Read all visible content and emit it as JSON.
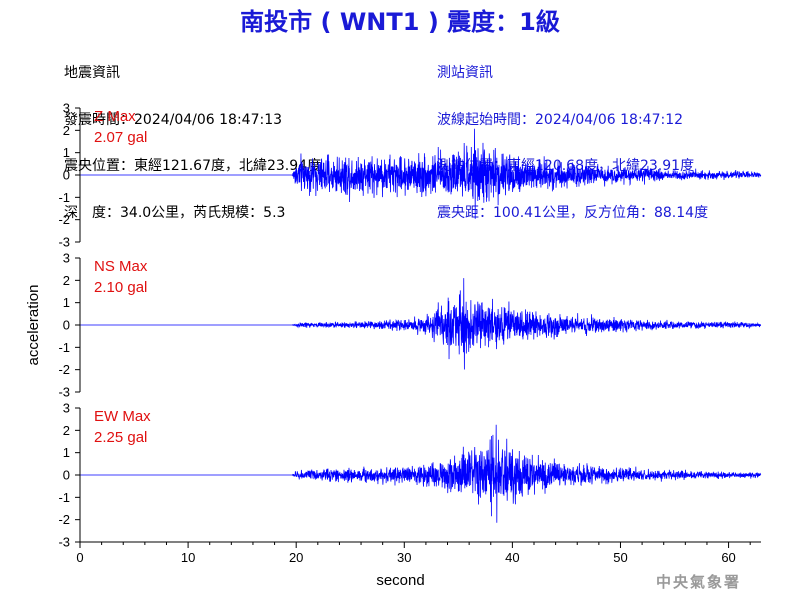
{
  "title": "南投市 ( WNT1 ) 震度：1級",
  "quake_info": {
    "heading": "地震資訊",
    "origin_time": "發震時間：2024/04/06 18:47:13",
    "epicenter": "震央位置：東經121.67度，北緯23.94度",
    "depth_magnitude": "深　度：34.0公里，芮氏規模：5.3"
  },
  "station_info": {
    "heading": "測站資訊",
    "wave_start_time": "波線起始時間：2024/04/06 18:47:12",
    "station_location": "測站位置：東經120.68度，北緯23.91度",
    "distance_azimuth": "震央距：100.41公里，反方位角：88.14度"
  },
  "watermark": "中央氣象署",
  "colors": {
    "trace": "#0000ff",
    "max_label": "#e01010",
    "title": "#1a1ad6"
  },
  "chart_data": {
    "type": "line",
    "xlabel": "second",
    "ylabel": "acceleration",
    "xlim": [
      0,
      63
    ],
    "x_ticks": [
      0,
      10,
      20,
      30,
      40,
      50,
      60
    ],
    "ylim": [
      -3,
      3
    ],
    "y_ticks": [
      3,
      2,
      1,
      0,
      -1,
      -2,
      -3
    ],
    "series": [
      {
        "name": "Z",
        "label_line1": "Z Max",
        "label_line2": "2.07 gal",
        "max": 2.07,
        "onset": 19.6,
        "peak_time": 36.5,
        "envelope": [
          [
            19.6,
            0.0
          ],
          [
            20.0,
            1.1
          ],
          [
            22.0,
            1.1
          ],
          [
            25.0,
            1.3
          ],
          [
            30.0,
            1.2
          ],
          [
            34.0,
            1.4
          ],
          [
            37.0,
            1.9
          ],
          [
            40.0,
            1.3
          ],
          [
            45.0,
            0.8
          ],
          [
            50.0,
            0.5
          ],
          [
            55.0,
            0.35
          ],
          [
            60.0,
            0.25
          ],
          [
            63.0,
            0.2
          ]
        ]
      },
      {
        "name": "NS",
        "label_line1": "NS Max",
        "label_line2": "2.10 gal",
        "max": 2.1,
        "onset": 19.6,
        "peak_time": 35.5,
        "envelope": [
          [
            19.6,
            0.0
          ],
          [
            20.0,
            0.15
          ],
          [
            25.0,
            0.2
          ],
          [
            30.0,
            0.35
          ],
          [
            32.0,
            0.6
          ],
          [
            33.0,
            1.1
          ],
          [
            35.0,
            1.9
          ],
          [
            37.0,
            1.5
          ],
          [
            40.0,
            1.1
          ],
          [
            43.0,
            0.8
          ],
          [
            48.0,
            0.5
          ],
          [
            53.0,
            0.3
          ],
          [
            58.0,
            0.2
          ],
          [
            63.0,
            0.15
          ]
        ]
      },
      {
        "name": "EW",
        "label_line1": "EW Max",
        "label_line2": "2.25 gal",
        "max": 2.25,
        "onset": 19.6,
        "peak_time": 38.5,
        "envelope": [
          [
            19.6,
            0.0
          ],
          [
            20.0,
            0.3
          ],
          [
            25.0,
            0.45
          ],
          [
            30.0,
            0.5
          ],
          [
            33.0,
            0.9
          ],
          [
            35.0,
            1.4
          ],
          [
            38.0,
            2.1
          ],
          [
            41.0,
            1.4
          ],
          [
            45.0,
            0.8
          ],
          [
            50.0,
            0.45
          ],
          [
            55.0,
            0.3
          ],
          [
            60.0,
            0.2
          ],
          [
            63.0,
            0.15
          ]
        ]
      }
    ]
  }
}
